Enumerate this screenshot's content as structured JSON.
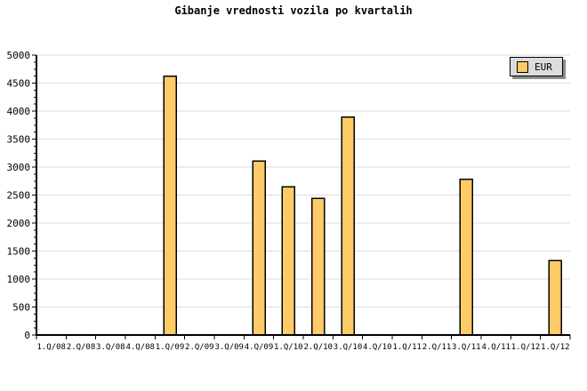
{
  "title": "Gibanje vrednosti vozila po kvartalih",
  "legend": {
    "label": "EUR",
    "position": "top-right",
    "box_bg": "#DCDCDC",
    "border_color": "#000000",
    "shadow_color": "#8C8C8C"
  },
  "chart_data": {
    "type": "bar",
    "title": "Gibanje vrednosti vozila po kvartalih",
    "xlabel": "",
    "ylabel": "",
    "categories": [
      "1.Q/08",
      "2.Q/08",
      "3.Q/08",
      "4.Q/08",
      "1.Q/09",
      "2.Q/09",
      "3.Q/09",
      "4.Q/09",
      "1.Q/10",
      "2.Q/10",
      "3.Q/10",
      "4.Q/10",
      "1.Q/11",
      "2.Q/11",
      "3.Q/11",
      "4.Q/11",
      "1.Q/12",
      "1.Q/12"
    ],
    "series": [
      {
        "name": "EUR",
        "values": [
          null,
          null,
          null,
          null,
          4620,
          null,
          null,
          3110,
          2650,
          2440,
          3890,
          null,
          null,
          null,
          2780,
          null,
          null,
          1330
        ]
      }
    ],
    "ylim": [
      0,
      5000
    ],
    "ytick_step": 500,
    "yminor_per_major": 4,
    "ytick_labels": [
      "0",
      "500",
      "1000",
      "1500",
      "2000",
      "2500",
      "3000",
      "3500",
      "4000",
      "4500",
      "5000"
    ],
    "grid": "horizontal",
    "legend_position": "top-right",
    "bar_color": "#FFCB66",
    "bar_border_color": "#000000",
    "grid_color": "#DCDCDC",
    "axis_color": "#000000",
    "text_color": "#000000"
  }
}
